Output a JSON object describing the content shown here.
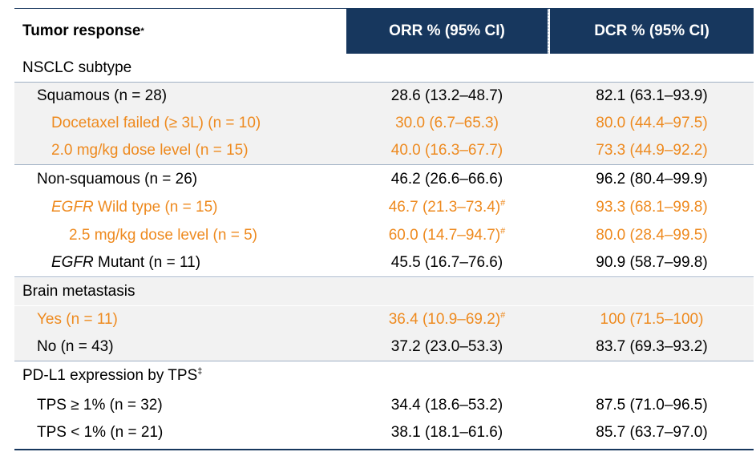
{
  "header": {
    "tumor_response": "Tumor response",
    "tumor_response_mark": "*",
    "orr": "ORR % (95% CI)",
    "dcr": "DCR % (95% CI)"
  },
  "colors": {
    "header_bg": "#17375e",
    "highlight": "#ee8a1f",
    "row_shade": "#f2f2f2"
  },
  "rows": [
    {
      "label": "NSCLC subtype"
    },
    {
      "label": "Squamous (n = 28)",
      "orr": "28.6 (13.2–48.7)",
      "dcr": "82.1 (63.1–93.9)"
    },
    {
      "label": "Docetaxel failed (≥ 3L) (n = 10)",
      "orr": "30.0 (6.7–65.3)",
      "dcr": "80.0 (44.4–97.5)"
    },
    {
      "label": "2.0 mg/kg dose level (n = 15)",
      "orr": "40.0 (16.3–67.7)",
      "dcr": "73.3 (44.9–92.2)"
    },
    {
      "label": "Non-squamous (n = 26)",
      "orr": "46.2 (26.6–66.6)",
      "dcr": "96.2 (80.4–99.9)"
    },
    {
      "label_italic": "EGFR",
      "label_rest": " Wild type (n = 15)",
      "orr": "46.7 (21.3–73.4)",
      "orr_mark": "#",
      "dcr": "93.3 (68.1–99.8)"
    },
    {
      "label": "2.5 mg/kg dose level (n = 5)",
      "orr": "60.0 (14.7–94.7)",
      "orr_mark": "#",
      "dcr": "80.0 (28.4–99.5)"
    },
    {
      "label_italic": "EGFR",
      "label_rest": " Mutant (n = 11)",
      "orr": "45.5 (16.7–76.6)",
      "dcr": "90.9 (58.7–99.8)"
    },
    {
      "label": "Brain metastasis"
    },
    {
      "label": "Yes (n = 11)",
      "orr": "36.4 (10.9–69.2)",
      "orr_mark": "#",
      "dcr": "100 (71.5–100)"
    },
    {
      "label": "No (n = 43)",
      "orr": "37.2 (23.0–53.3)",
      "dcr": "83.7 (69.3–93.2)"
    },
    {
      "label": "PD-L1 expression by TPS",
      "label_mark": "‡"
    },
    {
      "label": "TPS ≥ 1% (n = 32)",
      "orr": "34.4 (18.6–53.2)",
      "dcr": "87.5 (71.0–96.5)"
    },
    {
      "label": "TPS < 1% (n = 21)",
      "orr": "38.1 (18.1–61.6)",
      "dcr": "85.7 (63.7–97.0)"
    }
  ]
}
